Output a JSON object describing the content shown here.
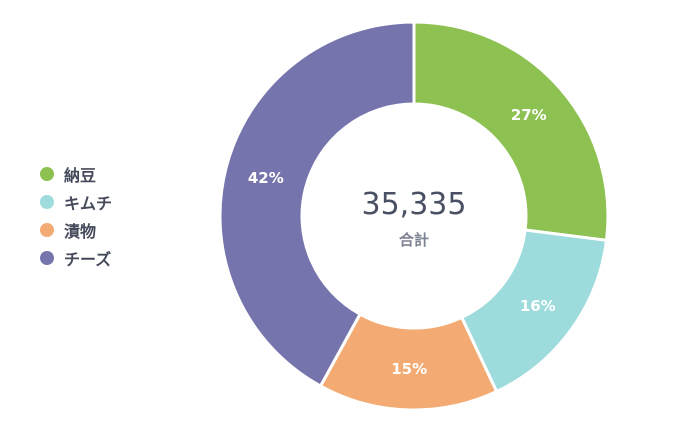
{
  "chart_data": {
    "type": "pie",
    "categories": [
      "納豆",
      "キムチ",
      "漬物",
      "チーズ"
    ],
    "values": [
      27,
      16,
      15,
      42
    ],
    "labels": [
      "27%",
      "16%",
      "15%",
      "42%"
    ],
    "colors": [
      "#8dc152",
      "#9edbdc",
      "#f3ab73",
      "#7674ad"
    ],
    "total": "35,335",
    "total_label": "合計",
    "legend_position": "left",
    "donut": true
  }
}
